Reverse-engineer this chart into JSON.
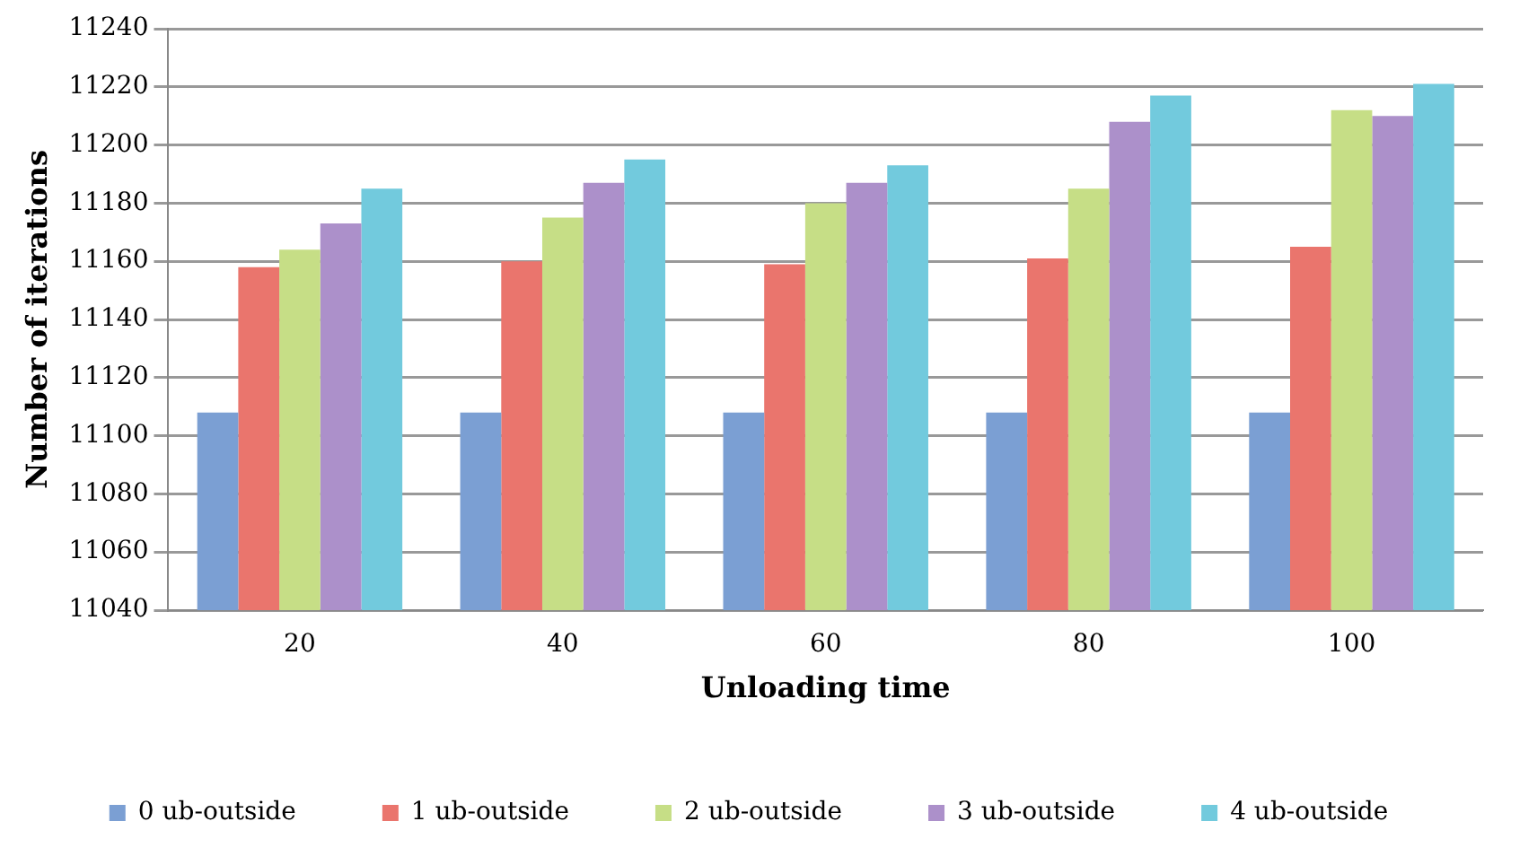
{
  "chart_data": {
    "type": "bar",
    "xlabel": "Unloading time",
    "ylabel": "Number of iterations",
    "categories": [
      "20",
      "40",
      "60",
      "80",
      "100"
    ],
    "series": [
      {
        "name": "0 ub-outside",
        "color": "#7b9fd3",
        "values": [
          11108,
          11108,
          11108,
          11108,
          11108
        ]
      },
      {
        "name": "1 ub-outside",
        "color": "#ea756d",
        "values": [
          11158,
          11160,
          11159,
          11161,
          11165
        ]
      },
      {
        "name": "2 ub-outside",
        "color": "#c6de86",
        "values": [
          11164,
          11175,
          11180,
          11185,
          11212
        ]
      },
      {
        "name": "3 ub-outside",
        "color": "#ac90ca",
        "values": [
          11173,
          11187,
          11187,
          11208,
          11210
        ]
      },
      {
        "name": "4 ub-outside",
        "color": "#72cadd",
        "values": [
          11185,
          11195,
          11193,
          11217,
          11221
        ]
      }
    ],
    "ylim": [
      11040,
      11240
    ],
    "yticks": [
      11040,
      11060,
      11080,
      11100,
      11120,
      11140,
      11160,
      11180,
      11200,
      11220,
      11240
    ],
    "grid": "y",
    "legend": "bottom"
  }
}
